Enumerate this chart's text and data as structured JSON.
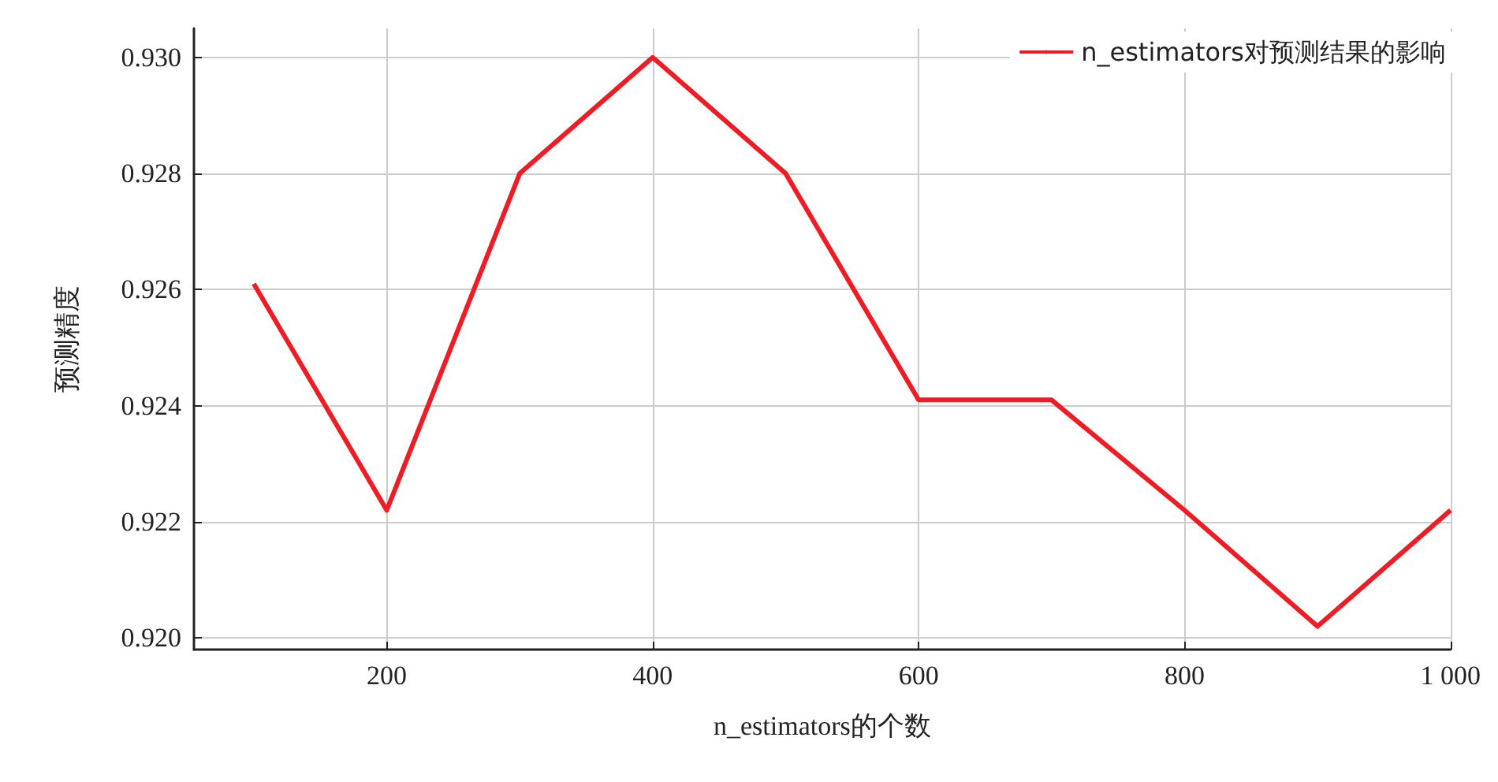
{
  "chart_data": {
    "type": "line",
    "xlabel": "n_estimators的个数",
    "ylabel": "预测精度",
    "x": [
      100,
      200,
      300,
      400,
      500,
      600,
      700,
      800,
      900,
      1000
    ],
    "series": [
      {
        "name": "n_estimators对预测结果的影响",
        "color": "#ee1c25",
        "values": [
          0.9261,
          0.9222,
          0.928,
          0.93,
          0.928,
          0.9241,
          0.9241,
          0.9222,
          0.9202,
          0.9222
        ]
      }
    ],
    "xlim": [
      55,
      1000
    ],
    "xticks": [
      200,
      400,
      600,
      800,
      {
        "value": 1000,
        "label": "1 000"
      }
    ],
    "ylim": [
      0.9198,
      0.9305
    ],
    "yticks": [
      {
        "value": 0.92,
        "label": "0.920"
      },
      0.922,
      0.924,
      0.926,
      0.928,
      {
        "value": 0.93,
        "label": "0.930"
      }
    ],
    "grid": true,
    "legend": "top right",
    "marker": "none",
    "line_style": "solid"
  }
}
